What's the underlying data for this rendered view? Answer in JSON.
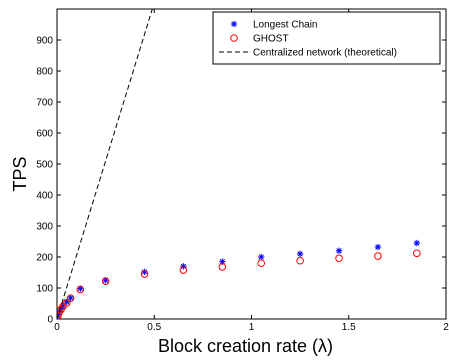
{
  "chart_data": {
    "type": "scatter",
    "xlabel": "Block creation rate (λ)",
    "ylabel": "TPS",
    "xlim": [
      0,
      2
    ],
    "ylim": [
      0,
      1000
    ],
    "x_ticks": [
      0,
      0.5,
      1,
      1.5,
      2
    ],
    "y_ticks": [
      0,
      100,
      200,
      300,
      400,
      500,
      600,
      700,
      800,
      900
    ],
    "x_tick_labels": [
      "0",
      "0.5",
      "1",
      "1.5",
      "2"
    ],
    "y_tick_labels": [
      "0",
      "100",
      "200",
      "300",
      "400",
      "500",
      "600",
      "700",
      "800",
      "900"
    ],
    "grid": false,
    "legend_position": "top-right",
    "series": [
      {
        "name": "Longest Chain",
        "marker": "asterisk",
        "color": "#0000ff",
        "x": [
          0.005,
          0.01,
          0.02,
          0.03,
          0.05,
          0.07,
          0.12,
          0.25,
          0.45,
          0.65,
          0.85,
          1.05,
          1.25,
          1.45,
          1.65,
          1.85
        ],
        "y": [
          10,
          20,
          30,
          42,
          55,
          68,
          98,
          125,
          152,
          170,
          185,
          200,
          210,
          220,
          232,
          245
        ]
      },
      {
        "name": "GHOST",
        "marker": "circle",
        "color": "#ff0000",
        "x": [
          0.005,
          0.01,
          0.02,
          0.03,
          0.05,
          0.07,
          0.12,
          0.25,
          0.45,
          0.65,
          0.85,
          1.05,
          1.25,
          1.45,
          1.65,
          1.85
        ],
        "y": [
          10,
          20,
          30,
          40,
          52,
          67,
          95,
          122,
          145,
          158,
          168,
          180,
          188,
          196,
          203,
          212
        ]
      },
      {
        "name": "Centralized network (theoretical)",
        "style": "dashed-line",
        "color": "#000000",
        "x": [
          0,
          0.49
        ],
        "y": [
          0,
          1000
        ]
      }
    ]
  }
}
